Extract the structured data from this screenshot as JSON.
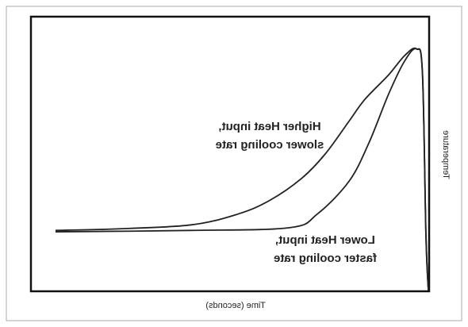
{
  "chart_data": {
    "type": "line",
    "xlabel": "Time (seconds)",
    "ylabel": "Temperature",
    "xlim": [
      0,
      100
    ],
    "ylim": [
      0,
      100
    ],
    "series": [
      {
        "color": "#222222",
        "x": [
          6,
          20,
          40,
          52,
          60,
          68,
          74,
          80,
          84,
          90,
          94,
          97,
          98.5,
          99.4,
          100
        ],
        "values": [
          22,
          22.5,
          24,
          28,
          33,
          41,
          50,
          62,
          70,
          79,
          86,
          88.5,
          80,
          20,
          0
        ]
      },
      {
        "color": "#222222",
        "x": [
          6,
          40,
          65,
          72,
          80,
          85,
          90,
          94,
          97,
          98.5,
          99.4,
          100
        ],
        "values": [
          21.5,
          22,
          23,
          28,
          40,
          54,
          72,
          84,
          88.5,
          80,
          20,
          0
        ]
      }
    ],
    "annotations": [
      {
        "lines": [
          "Higher Heat input,",
          "slower cooling rate"
        ]
      },
      {
        "lines": [
          "Lower Heat input,",
          "faster cooling rate"
        ]
      }
    ]
  }
}
